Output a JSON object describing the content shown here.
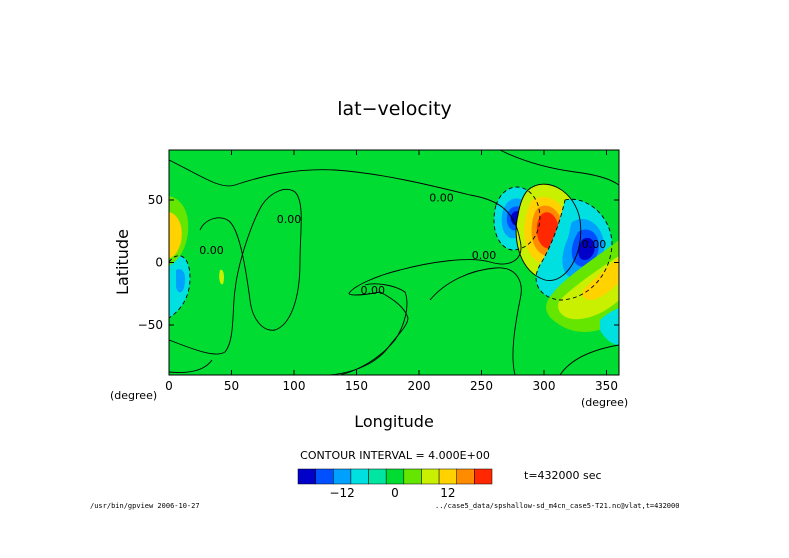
{
  "page": {
    "title": "lat−velocity",
    "contour_interval_label": "CONTOUR INTERVAL = 4.000E+00",
    "time_label": "t=432000 sec",
    "footer_left": "/usr/bin/gpview  2006-10-27",
    "footer_right": "../case5_data/spshallow-sd_m4cn_case5-T21.nc@vlat,t=432000",
    "x_unit": "(degree)",
    "y_unit": "(degree)"
  },
  "chart_data": {
    "type": "heatmap",
    "title": "lat−velocity",
    "xlabel": "Longitude",
    "ylabel": "Latitude",
    "xlim": [
      0,
      360
    ],
    "ylim": [
      -90,
      90
    ],
    "x_ticks": [
      0,
      50,
      100,
      150,
      200,
      250,
      300,
      350
    ],
    "y_ticks": [
      -50,
      0,
      50
    ],
    "contour_labels": [
      {
        "text": "0.00",
        "x": 218,
        "y": 52
      },
      {
        "text": "0.00",
        "x": 96,
        "y": 35
      },
      {
        "text": "0.00",
        "x": 34,
        "y": 10
      },
      {
        "text": "0.00",
        "x": 163,
        "y": -22
      },
      {
        "text": "0.00",
        "x": 252,
        "y": 6
      },
      {
        "text": "0.00",
        "x": 340,
        "y": 15
      }
    ],
    "colorbar": {
      "levels": [
        -20,
        -16,
        -12,
        -8,
        -4,
        0,
        4,
        8,
        12,
        16,
        20
      ],
      "colors": [
        "#0000c8",
        "#0050ff",
        "#00a0ff",
        "#00e0e0",
        "#00e6a0",
        "#00dc32",
        "#64e600",
        "#c8f000",
        "#ffd200",
        "#ff8c00",
        "#ff2800"
      ],
      "tick_labels": [
        "−12",
        "0",
        "12"
      ],
      "tick_values": [
        -12,
        0,
        12
      ]
    },
    "features": [
      {
        "kind": "high",
        "lon": 305,
        "lat": 27,
        "peak": 18
      },
      {
        "kind": "low",
        "lon": 277,
        "lat": 35,
        "peak": -17
      },
      {
        "kind": "low",
        "lon": 332,
        "lat": 15,
        "peak": -17
      },
      {
        "kind": "high",
        "lon": 345,
        "lat": -25,
        "peak": 8
      },
      {
        "kind": "high",
        "lon": 8,
        "lat": 28,
        "peak": 10
      },
      {
        "kind": "low",
        "lon": 10,
        "lat": -15,
        "peak": -8
      },
      {
        "kind": "high",
        "lon": 42,
        "lat": -10,
        "peak": 4
      }
    ]
  }
}
